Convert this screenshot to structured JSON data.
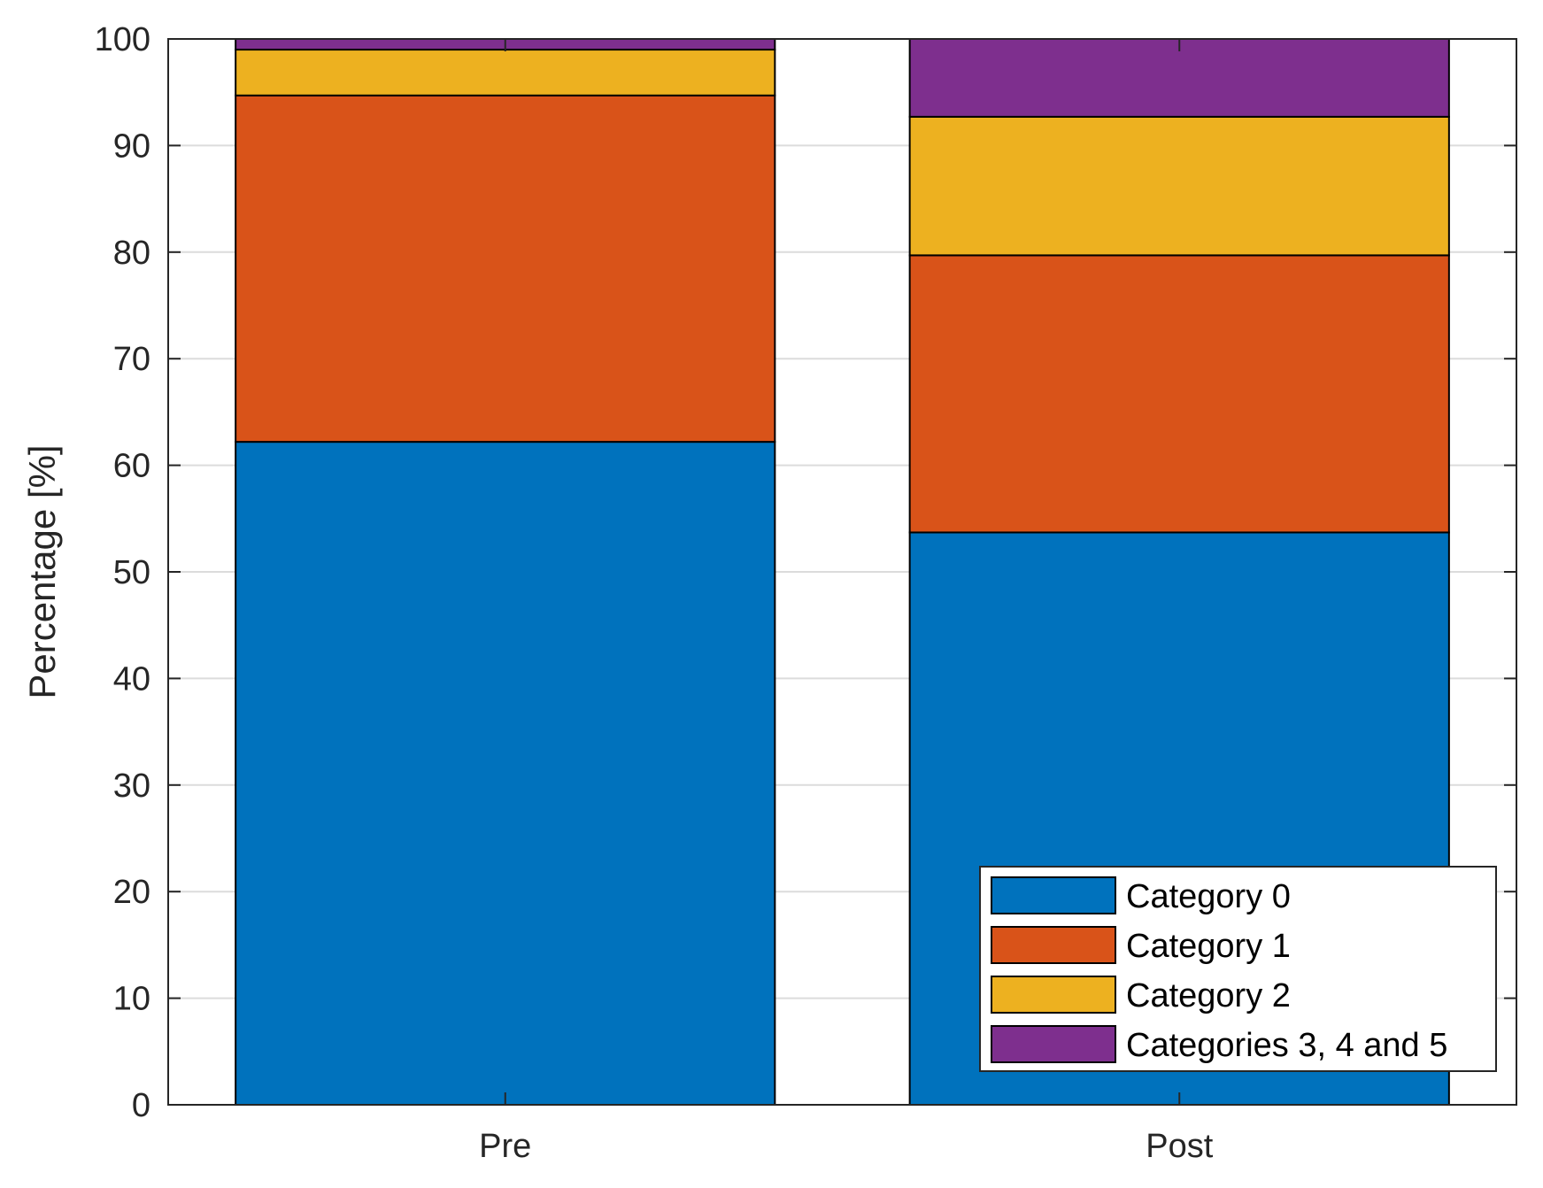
{
  "chart_data": {
    "type": "bar",
    "stacked": true,
    "categories": [
      "Pre",
      "Post"
    ],
    "series": [
      {
        "name": "Category 0",
        "color": "#0072BD",
        "values": [
          62.2,
          53.7
        ]
      },
      {
        "name": "Category 1",
        "color": "#D95319",
        "values": [
          32.5,
          26.0
        ]
      },
      {
        "name": "Category 2",
        "color": "#EDB120",
        "values": [
          4.3,
          13.0
        ]
      },
      {
        "name": "Categories 3, 4 and 5",
        "color": "#7E2F8E",
        "values": [
          1.0,
          7.3
        ]
      }
    ],
    "title": "",
    "xlabel": "",
    "ylabel": "Percentage [%]",
    "ylim": [
      0,
      100
    ],
    "yticks": [
      0,
      10,
      20,
      30,
      40,
      50,
      60,
      70,
      80,
      90,
      100
    ],
    "grid": "horizontal",
    "legend_position": "bottom-right"
  }
}
